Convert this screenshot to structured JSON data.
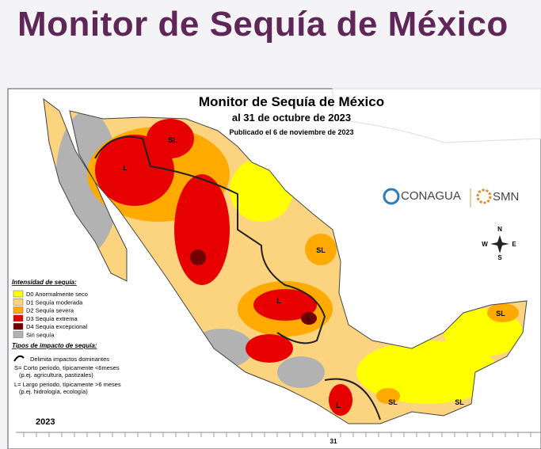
{
  "header": {
    "title": "Monitor de Sequía de México"
  },
  "map": {
    "title": "Monitor de Sequía de México",
    "date": "al 31 de octubre de 2023",
    "published": "Publicado el 6 de noviembre de 2023",
    "logos": [
      "CONAGUA",
      "SMN"
    ],
    "compass": [
      "N",
      "E",
      "S",
      "W"
    ],
    "legend": {
      "title": "Intensidad de sequía:",
      "items": [
        {
          "label": "D0 Anormalmente seco",
          "color": "#ffff00"
        },
        {
          "label": "D1 Sequía moderada",
          "color": "#fcd37f"
        },
        {
          "label": "D2 Sequía severa",
          "color": "#ffaa00"
        },
        {
          "label": "D3 Sequía extrema",
          "color": "#e60000"
        },
        {
          "label": "D4 Sequía excepcional",
          "color": "#730000"
        },
        {
          "label": "Sin sequía",
          "color": "#b2b2b2"
        }
      ]
    },
    "impact": {
      "title": "Tipos de impacto de sequía:",
      "line": "Delimita impactos dominantes",
      "s_lines": [
        "S= Corto periodo, típicamente <6meses",
        "(p.ej. agricultura, pastizales)"
      ],
      "l_lines": [
        "L= Largo periodo, típicamente >6 meses",
        "(p.ej. hidrología, ecología)"
      ]
    },
    "labels": [
      "SL",
      "L",
      "SL",
      "L",
      "L",
      "SL",
      "SL",
      "SL",
      "L"
    ],
    "timeline": {
      "year": "2023",
      "day": "31"
    }
  }
}
